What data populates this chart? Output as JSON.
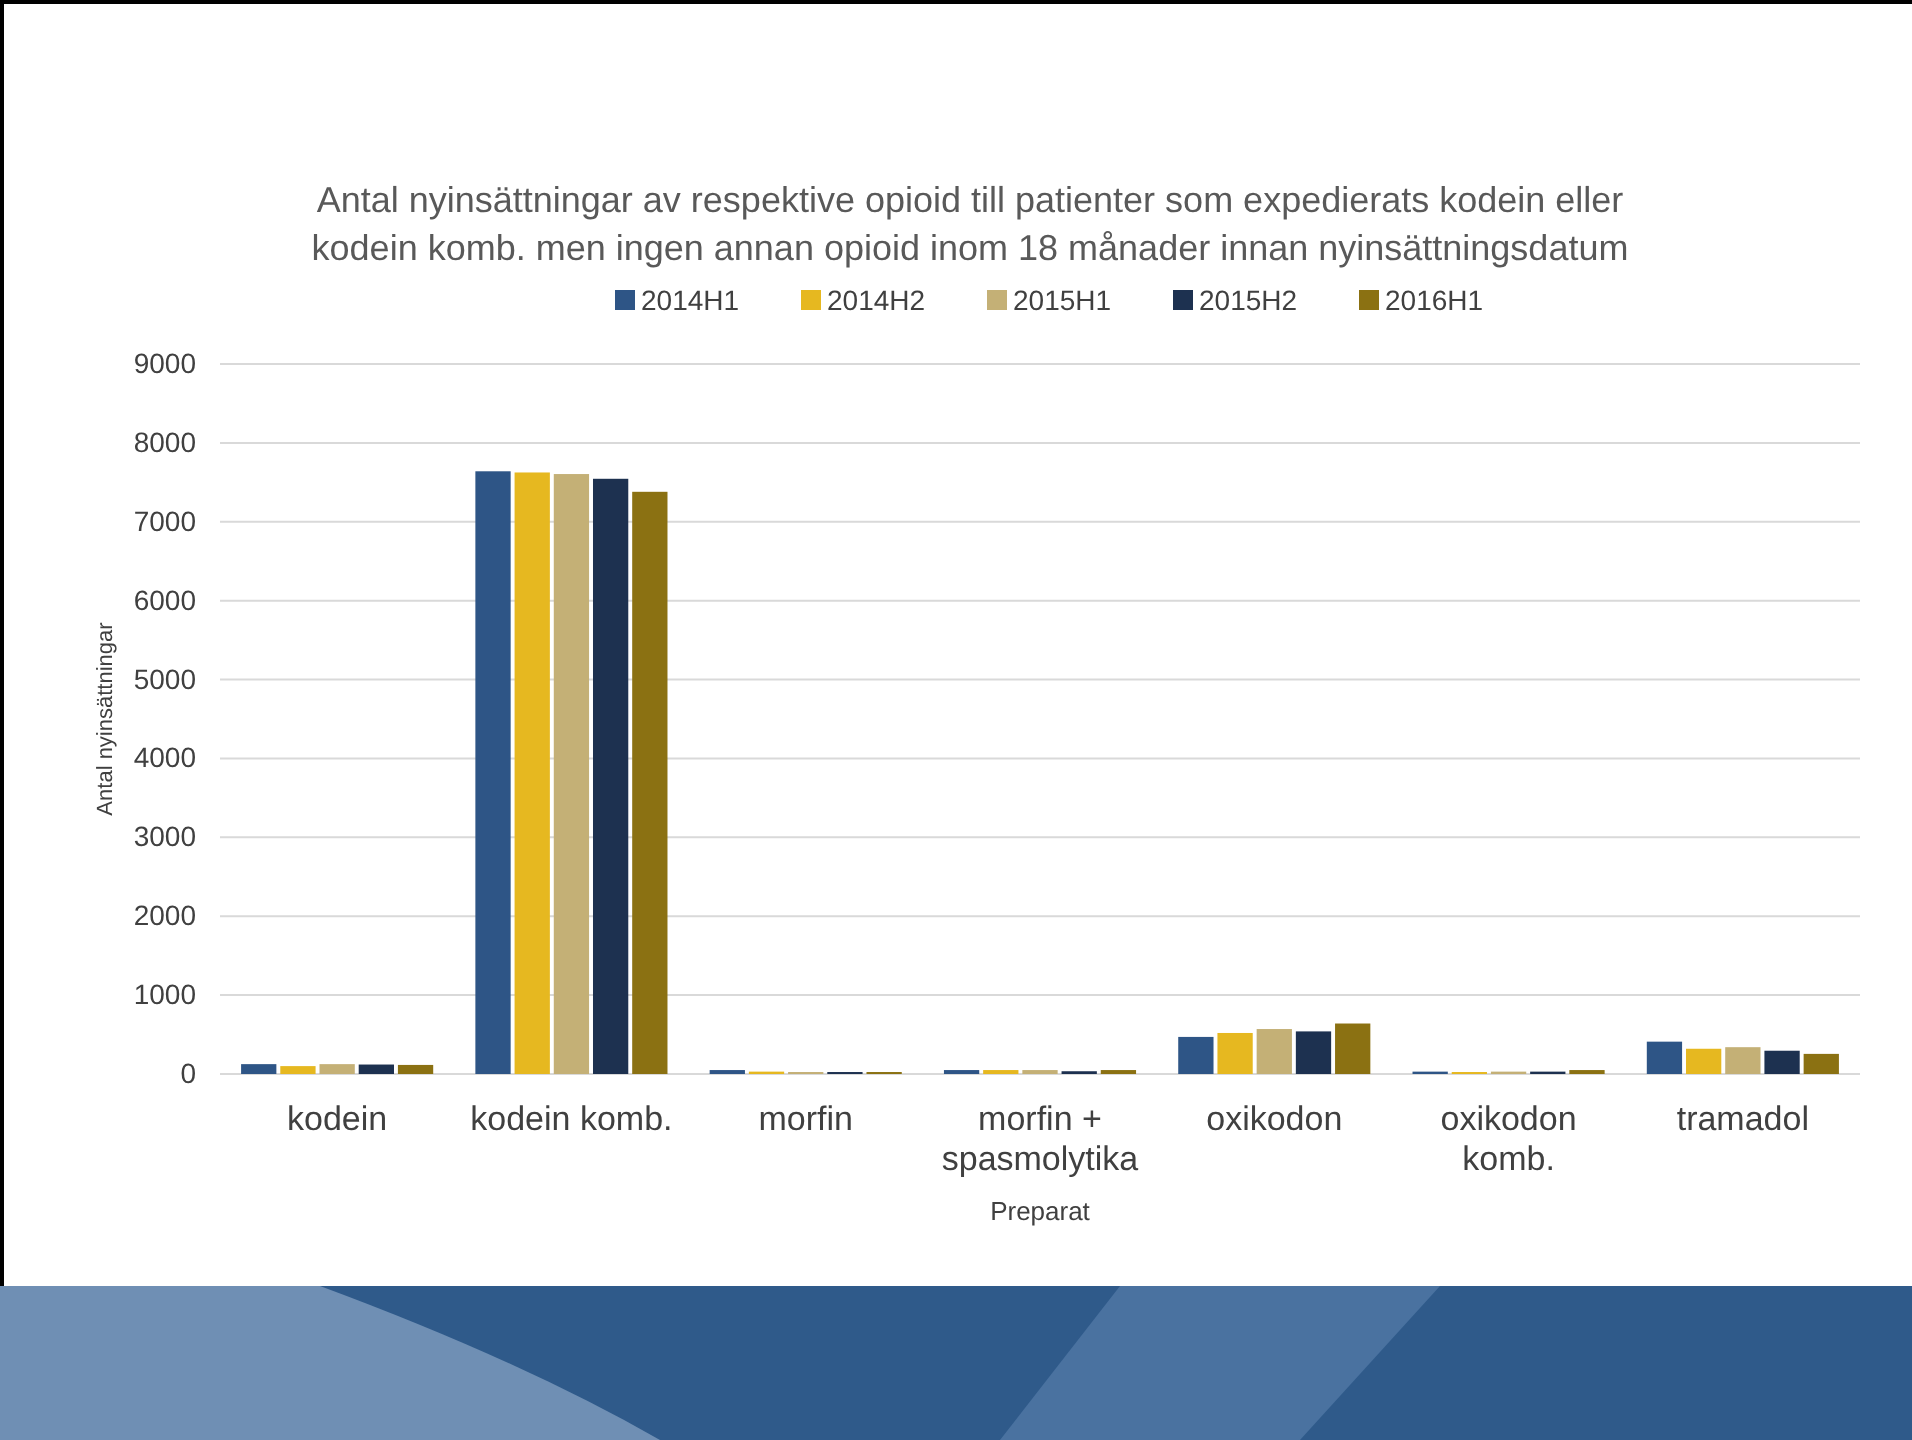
{
  "chart_data": {
    "type": "bar",
    "title": "Antal nyinsättningar av respektive opioid till patienter som expedierats kodein eller\nkodein komb. men ingen annan opioid inom 18 månader innan nyinsättningsdatum",
    "xlabel": "Preparat",
    "ylabel": "Antal nyinsättningar",
    "categories": [
      "kodein",
      "kodein komb.",
      "morfin",
      "morfin +\nspasmolytika",
      "oxikodon",
      "oxikodon\nkomb.",
      "tramadol"
    ],
    "series": [
      {
        "name": "2014H1",
        "color": "#2e5586",
        "values": [
          125,
          7640,
          50,
          50,
          470,
          30,
          410
        ]
      },
      {
        "name": "2014H2",
        "color": "#e6b820",
        "values": [
          100,
          7625,
          30,
          50,
          520,
          25,
          320
        ]
      },
      {
        "name": "2015H1",
        "color": "#c4b076",
        "values": [
          125,
          7605,
          25,
          50,
          570,
          30,
          340
        ]
      },
      {
        "name": "2015H2",
        "color": "#1d3150",
        "values": [
          120,
          7545,
          25,
          35,
          540,
          30,
          295
        ]
      },
      {
        "name": "2016H1",
        "color": "#8b7112",
        "values": [
          115,
          7380,
          25,
          50,
          640,
          50,
          255
        ]
      }
    ],
    "ylim": [
      0,
      9000
    ],
    "yticks": [
      0,
      1000,
      2000,
      3000,
      4000,
      5000,
      6000,
      7000,
      8000,
      9000
    ],
    "grid": "y",
    "legend": "top"
  }
}
